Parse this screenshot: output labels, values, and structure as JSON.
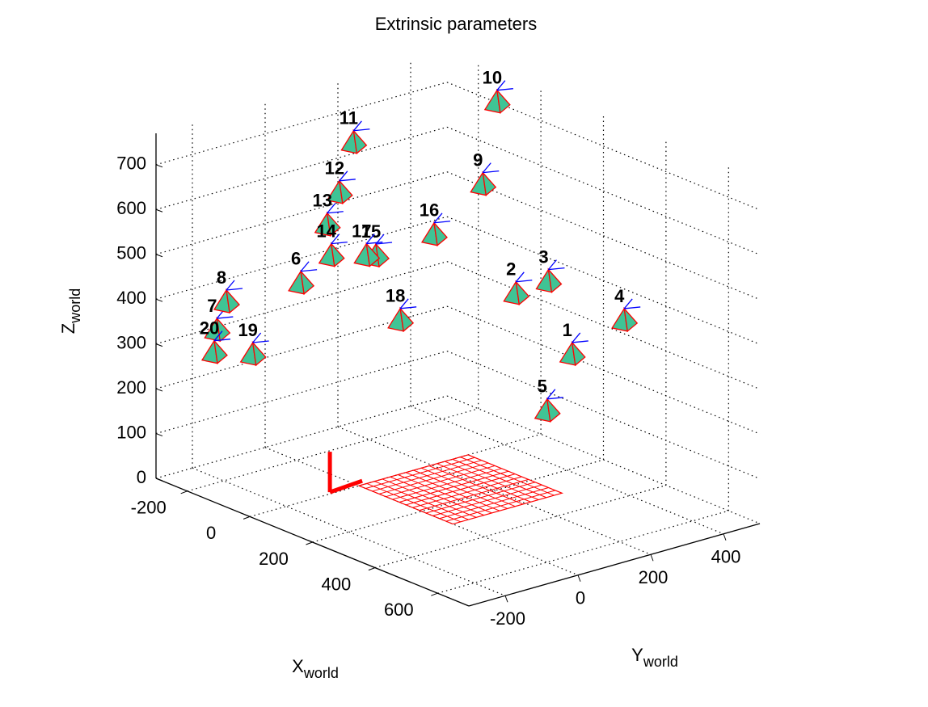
{
  "chart_data": {
    "type": "scatter3d",
    "title": "Extrinsic parameters",
    "xlabel": {
      "text": "X",
      "sub": "world"
    },
    "ylabel": {
      "text": "Y",
      "sub": "world"
    },
    "zlabel": {
      "text": "Z",
      "sub": "world"
    },
    "xlim": [
      -300,
      700
    ],
    "ylim": [
      -300,
      500
    ],
    "zlim": [
      0,
      770
    ],
    "xticks": [
      -200,
      0,
      200,
      400,
      600
    ],
    "yticks": [
      -200,
      0,
      200,
      400
    ],
    "zticks": [
      0,
      100,
      200,
      300,
      400,
      500,
      600,
      700
    ],
    "grid": true,
    "cameras": {
      "labels": [
        "1",
        "2",
        "3",
        "4",
        "5",
        "6",
        "7",
        "8",
        "9",
        "10",
        "11",
        "12",
        "13",
        "14",
        "15",
        "16",
        "17",
        "18",
        "19",
        "20"
      ],
      "x": [
        315,
        232,
        280,
        392,
        278,
        -86,
        -210,
        -196,
        183,
        204,
        -8,
        -29,
        -47,
        -41,
        25,
        111,
        11,
        61,
        -157,
        -214
      ],
      "y": [
        315,
        232,
        280,
        392,
        278,
        -86,
        -210,
        -196,
        183,
        204,
        -8,
        -29,
        -47,
        -41,
        25,
        111,
        11,
        61,
        -157,
        -214
      ],
      "z": [
        308,
        439,
        469,
        388,
        180,
        445,
        333,
        397,
        680,
        865,
        763,
        650,
        577,
        509,
        512,
        564,
        512,
        370,
        282,
        283
      ],
      "color": "#3fc495",
      "edge_color": "#ff0000",
      "axis_color": "#0000ff"
    },
    "board": {
      "x": [
        0,
        300
      ],
      "y": [
        0,
        300
      ],
      "color": "#ff0000"
    }
  }
}
